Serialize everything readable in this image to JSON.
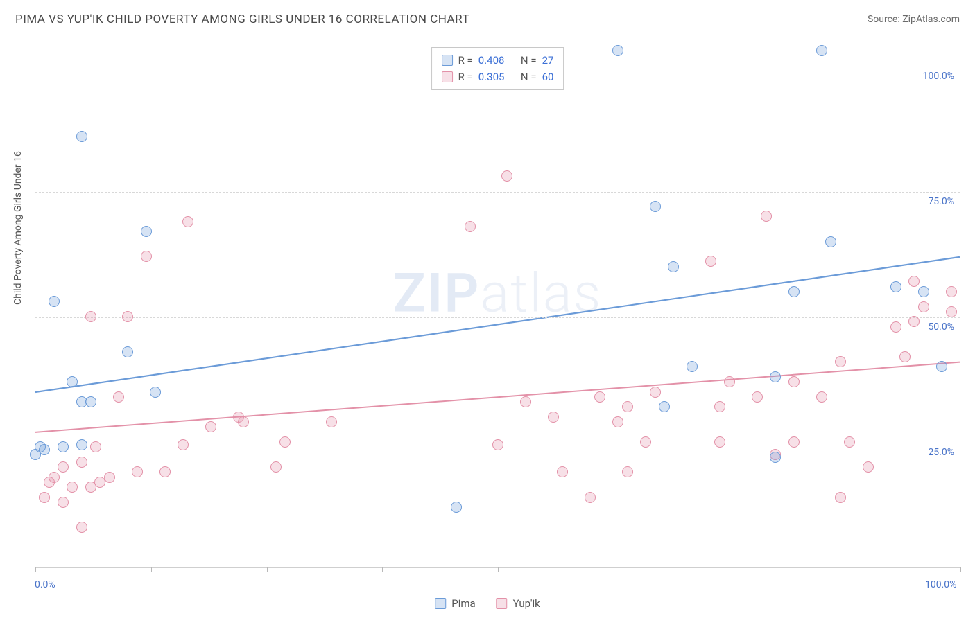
{
  "title": "PIMA VS YUP'IK CHILD POVERTY AMONG GIRLS UNDER 16 CORRELATION CHART",
  "source": "Source: ZipAtlas.com",
  "watermark": {
    "bold": "ZIP",
    "light": "atlas"
  },
  "chart": {
    "type": "scatter",
    "xlim": [
      0,
      100
    ],
    "ylim": [
      0,
      105
    ],
    "xtick_positions": [
      0,
      12.5,
      25,
      37.5,
      50,
      62.5,
      75,
      87.5,
      100
    ],
    "xtick_labels": {
      "0": "0.0%",
      "100": "100.0%"
    },
    "ygrid_positions": [
      25,
      50,
      75,
      100
    ],
    "ytick_labels": {
      "25": "25.0%",
      "50": "50.0%",
      "75": "75.0%",
      "100": "100.0%"
    },
    "ylabel": "Child Poverty Among Girls Under 16",
    "tick_label_color": "#4a74c9",
    "tick_label_fontsize": 14,
    "grid_color": "#d8d8d8",
    "axis_color": "#cfcfcf",
    "background_color": "#ffffff",
    "marker_radius": 8,
    "marker_stroke_width": 1.5,
    "marker_fill_opacity": 0.28
  },
  "series": {
    "pima": {
      "label": "Pima",
      "color": "#6b9bd8",
      "fill": "rgba(107,155,216,0.28)",
      "r_value": "0.408",
      "n_value": "27",
      "trend": {
        "x1": 0,
        "y1": 35,
        "x2": 100,
        "y2": 62,
        "width": 2.2
      },
      "points": [
        [
          0,
          22.5
        ],
        [
          1,
          23.5
        ],
        [
          0.5,
          24
        ],
        [
          5,
          33
        ],
        [
          5,
          86
        ],
        [
          2,
          53
        ],
        [
          4,
          37
        ],
        [
          3,
          24
        ],
        [
          6,
          33
        ],
        [
          5,
          24.5
        ],
        [
          10,
          43
        ],
        [
          12,
          67
        ],
        [
          13,
          35
        ],
        [
          45.5,
          12
        ],
        [
          63,
          103
        ],
        [
          67,
          72
        ],
        [
          69,
          60
        ],
        [
          71,
          40
        ],
        [
          68,
          32
        ],
        [
          80,
          38
        ],
        [
          80,
          22
        ],
        [
          82,
          55
        ],
        [
          85,
          103
        ],
        [
          86,
          65
        ],
        [
          93,
          56
        ],
        [
          96,
          55
        ],
        [
          98,
          40
        ]
      ]
    },
    "yupik": {
      "label": "Yup'ik",
      "color": "#e391a8",
      "fill": "rgba(227,145,168,0.28)",
      "r_value": "0.305",
      "n_value": "60",
      "trend": {
        "x1": 0,
        "y1": 27,
        "x2": 100,
        "y2": 41,
        "width": 2
      },
      "points": [
        [
          1,
          14
        ],
        [
          1.5,
          17
        ],
        [
          2,
          18
        ],
        [
          3,
          13
        ],
        [
          3,
          20
        ],
        [
          4,
          16
        ],
        [
          5,
          21
        ],
        [
          5,
          8
        ],
        [
          6,
          50
        ],
        [
          6,
          16
        ],
        [
          6.5,
          24
        ],
        [
          7,
          17
        ],
        [
          8,
          18
        ],
        [
          9,
          34
        ],
        [
          10,
          50
        ],
        [
          11,
          19
        ],
        [
          12,
          62
        ],
        [
          14,
          19
        ],
        [
          16,
          24.5
        ],
        [
          16.5,
          69
        ],
        [
          19,
          28
        ],
        [
          22,
          30
        ],
        [
          22.5,
          29
        ],
        [
          26,
          20
        ],
        [
          27,
          25
        ],
        [
          32,
          29
        ],
        [
          47,
          68
        ],
        [
          50,
          24.5
        ],
        [
          51,
          78
        ],
        [
          53,
          33
        ],
        [
          56,
          30
        ],
        [
          57,
          19
        ],
        [
          60,
          14
        ],
        [
          61,
          34
        ],
        [
          63,
          29
        ],
        [
          64,
          19
        ],
        [
          64,
          32
        ],
        [
          66,
          25
        ],
        [
          67,
          35
        ],
        [
          73,
          61
        ],
        [
          74,
          25
        ],
        [
          74,
          32
        ],
        [
          75,
          37
        ],
        [
          78,
          34
        ],
        [
          79,
          70
        ],
        [
          80,
          22.5
        ],
        [
          82,
          25
        ],
        [
          82,
          37
        ],
        [
          85,
          34
        ],
        [
          87,
          14
        ],
        [
          87,
          41
        ],
        [
          88,
          25
        ],
        [
          90,
          20
        ],
        [
          93,
          48
        ],
        [
          94,
          42
        ],
        [
          95,
          57
        ],
        [
          95,
          49
        ],
        [
          96,
          52
        ],
        [
          99,
          55
        ],
        [
          99,
          51
        ]
      ]
    }
  },
  "stats_box": {
    "r_label": "R =",
    "n_label": "N ="
  },
  "legend": {
    "items": [
      "pima",
      "yupik"
    ]
  }
}
